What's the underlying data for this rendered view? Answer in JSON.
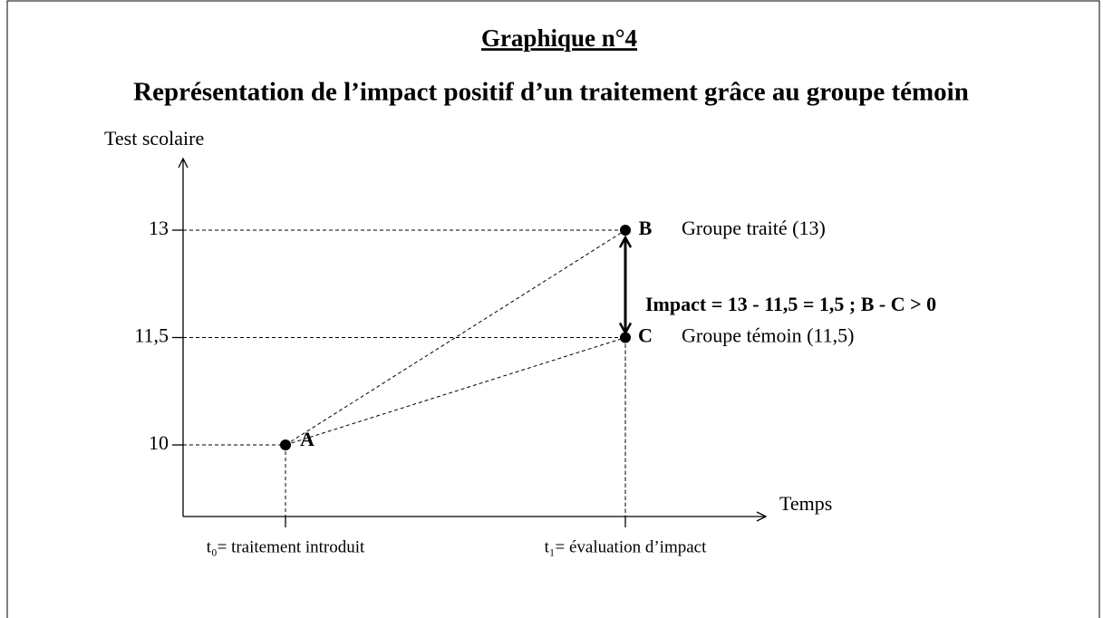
{
  "chart_data": {
    "type": "line",
    "title": "Graphique n°4",
    "subtitle": "Représentation de l’impact positif d’un traitement grâce au groupe témoin",
    "y_label": "Test scolaire",
    "x_label": "Temps",
    "categories": [
      "t₀= traitement introduit",
      "t₁= évaluation d’impact"
    ],
    "series": [
      {
        "name": "Groupe traité (13)",
        "point_labels": [
          "A",
          "B"
        ],
        "color": "#000000",
        "values": [
          10,
          13
        ]
      },
      {
        "name": "Groupe témoin (11,5)",
        "point_labels": [
          "A",
          "C"
        ],
        "color": "#000000",
        "values": [
          10,
          11.5
        ]
      }
    ],
    "annotation": "Impact = 13 - 11,5 = 1,5 ; B - C > 0",
    "ylim": [
      9,
      14
    ],
    "yticks": [
      {
        "value": 10,
        "label": "10"
      },
      {
        "value": 11.5,
        "label": "11,5"
      },
      {
        "value": 13,
        "label": "13"
      }
    ]
  }
}
